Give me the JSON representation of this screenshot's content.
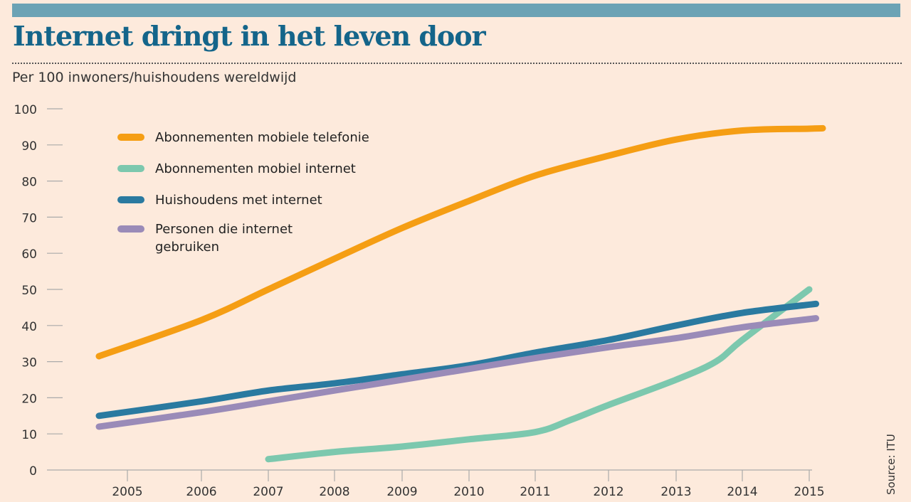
{
  "header": {
    "title": "Internet dringt in het leven door",
    "subtitle": "Per 100 inwoners/huishoudens wereldwijd"
  },
  "source": "Source: ITU",
  "chart_data": {
    "type": "line",
    "title": "Internet dringt in het leven door",
    "ylabel": "Per 100 inwoners/huishoudens wereldwijd",
    "ylim": [
      0,
      100
    ],
    "yticks": [
      "0",
      "10",
      "20",
      "30",
      "40",
      "50",
      "60",
      "70",
      "80",
      "90",
      "100"
    ],
    "xticks": [
      "2005",
      "2006",
      "2007",
      "2008",
      "2009",
      "2010",
      "2011",
      "2012",
      "2013",
      "2014",
      "2015"
    ],
    "legend_placement": "top-left",
    "series": [
      {
        "name": "Abonnementen mobiele telefonie",
        "color": "#f59e14",
        "x": [
          2004.6,
          2006,
          2007,
          2008,
          2009,
          2010,
          2011,
          2012,
          2013,
          2014,
          2015,
          2015.2
        ],
        "y": [
          31.5,
          41.5,
          50,
          58.5,
          67,
          74.5,
          81.5,
          87,
          91.5,
          94,
          94.5,
          94.6
        ]
      },
      {
        "name": "Abonnementen mobiel internet",
        "color": "#7cc8ae",
        "x": [
          2007,
          2008,
          2009,
          2010,
          2011,
          2011.5,
          2012,
          2013,
          2013.6,
          2014,
          2015
        ],
        "y": [
          3,
          5,
          6.5,
          8.5,
          10.5,
          14,
          18,
          25,
          30,
          36,
          50
        ]
      },
      {
        "name": "Huishoudens met internet",
        "color": "#2a7aa0",
        "x": [
          2004.6,
          2006,
          2007,
          2008,
          2009,
          2010,
          2011,
          2012,
          2013,
          2014,
          2015.1
        ],
        "y": [
          15,
          19,
          22,
          24,
          26.5,
          29,
          32.5,
          36,
          40,
          43.5,
          46
        ]
      },
      {
        "name": "Personen die internet gebruiken",
        "color": "#9a8bb8",
        "x": [
          2004.6,
          2006,
          2007,
          2008,
          2009,
          2010,
          2011,
          2012,
          2013,
          2014,
          2015.1
        ],
        "y": [
          12,
          16,
          19,
          22,
          25,
          28,
          31,
          34,
          36.5,
          39.5,
          42
        ]
      }
    ]
  }
}
